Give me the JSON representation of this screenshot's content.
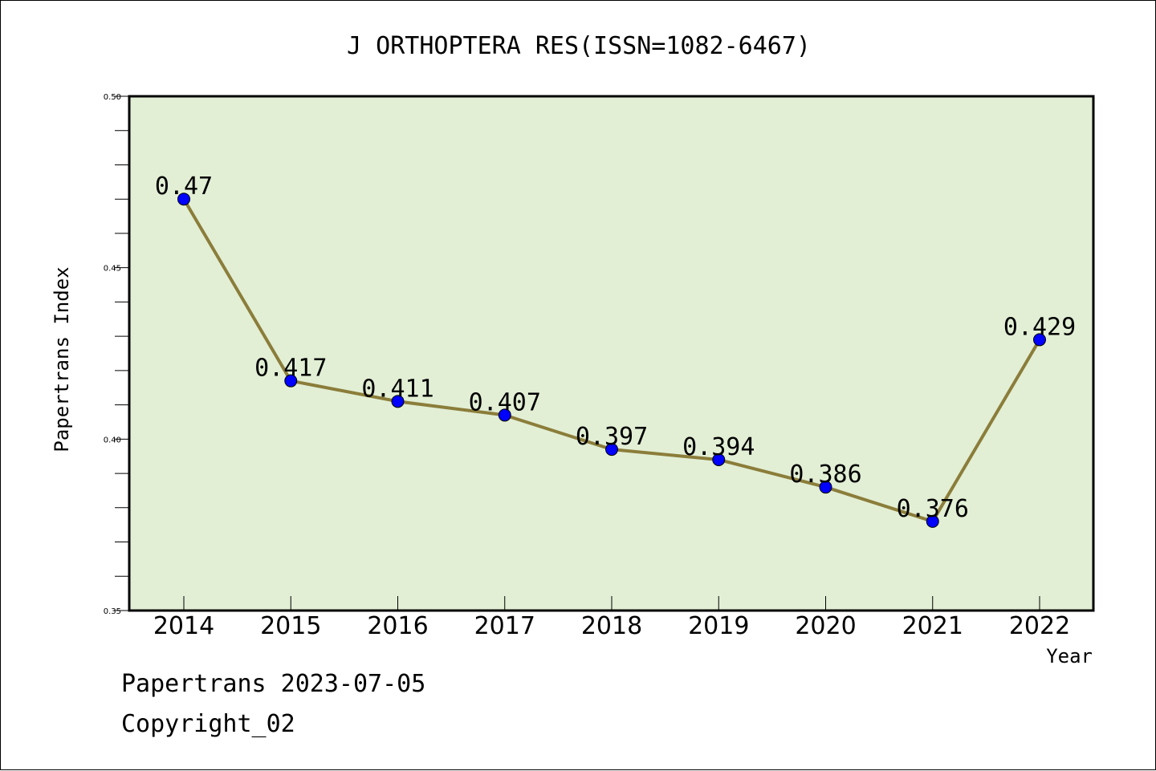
{
  "footer": {
    "line1": "Papertrans 2023-07-05",
    "line2": "Copyright_02"
  },
  "colors": {
    "plot_background": "#e2efd5",
    "line": "#8b7d3a",
    "marker": "#0000ff"
  },
  "chart_data": {
    "type": "line",
    "title": "J ORTHOPTERA RES(ISSN=1082-6467)",
    "xlabel": "Year",
    "ylabel": "Papertrans Index",
    "categories": [
      "2014",
      "2015",
      "2016",
      "2017",
      "2018",
      "2019",
      "2020",
      "2021",
      "2022"
    ],
    "series": [
      {
        "values": [
          0.47,
          0.417,
          0.411,
          0.407,
          0.397,
          0.394,
          0.386,
          0.376,
          0.429
        ],
        "data_labels": [
          "0.47",
          "0.417",
          "0.411",
          "0.407",
          "0.397",
          "0.394",
          "0.386",
          "0.376",
          "0.429"
        ]
      }
    ],
    "ylim": [
      0.35,
      0.5
    ],
    "yticks": [
      "0.35",
      "0.40",
      "0.45",
      "0.50"
    ],
    "grid": false,
    "legend": "none"
  }
}
